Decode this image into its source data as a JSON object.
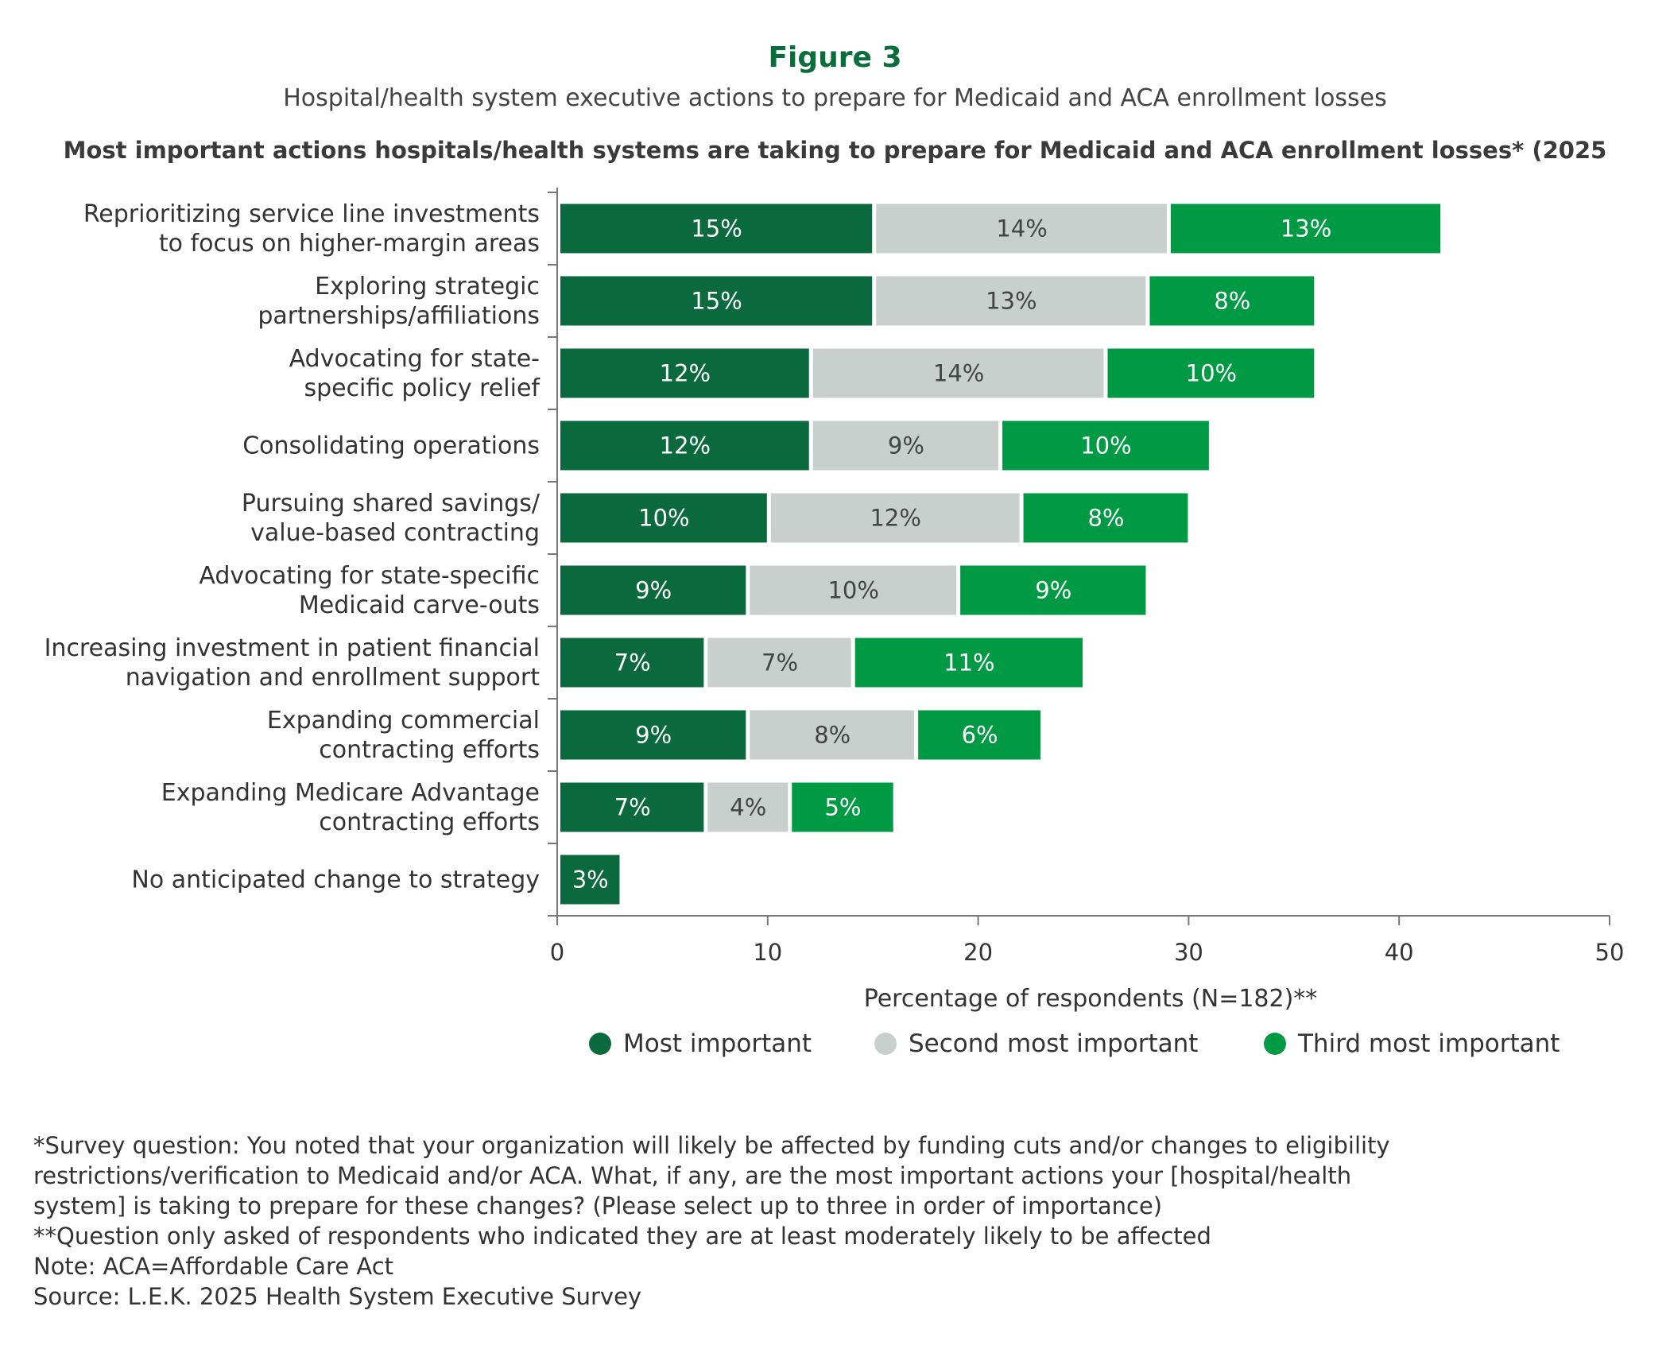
{
  "figure": {
    "label": "Figure 3",
    "subtitle": "Hospital/health system executive actions to prepare for Medicaid and ACA enrollment losses"
  },
  "chart_data": {
    "type": "bar",
    "orientation": "horizontal",
    "stacked": true,
    "title": "Most important actions hospitals/health systems are taking to prepare for Medicaid and ACA enrollment losses* (2025",
    "categories": [
      [
        "Reprioritizing service line investments",
        "to focus on higher-margin areas"
      ],
      [
        "Exploring strategic",
        "partnerships/affiliations"
      ],
      [
        "Advocating for state-",
        "specific policy relief"
      ],
      [
        "Consolidating operations"
      ],
      [
        "Pursuing shared savings/",
        "value-based contracting"
      ],
      [
        "Advocating for state-specific",
        "Medicaid carve-outs"
      ],
      [
        "Increasing investment in patient financial",
        "navigation and enrollment support"
      ],
      [
        "Expanding commercial",
        "contracting efforts"
      ],
      [
        "Expanding Medicare Advantage",
        "contracting efforts"
      ],
      [
        "No anticipated change to strategy"
      ]
    ],
    "series": [
      {
        "name": "Most important",
        "color": "#0b6a3d",
        "label_color": "#ffffff",
        "values": [
          15,
          15,
          12,
          12,
          10,
          9,
          7,
          9,
          7,
          3
        ]
      },
      {
        "name": "Second most important",
        "color": "#c8cfcd",
        "label_color": "#444444",
        "values": [
          14,
          13,
          14,
          9,
          12,
          10,
          7,
          8,
          4,
          0
        ]
      },
      {
        "name": "Third most important",
        "color": "#009a44",
        "label_color": "#ffffff",
        "values": [
          13,
          8,
          10,
          10,
          8,
          9,
          11,
          6,
          5,
          0
        ]
      }
    ],
    "value_suffix": "%",
    "xlabel": "Percentage of respondents (N=182)**",
    "xlim": [
      0,
      50
    ],
    "xticks": [
      0,
      10,
      20,
      30,
      40,
      50
    ],
    "grid": false,
    "legend_position": "bottom"
  },
  "notes": [
    "*Survey question: You noted that your organization will likely be affected by funding cuts and/or changes to eligibility",
    "restrictions/verification to Medicaid and/or ACA. What, if any, are the most important actions your [hospital/health",
    "system] is taking to prepare for these changes? (Please select up to three in order of importance)",
    "**Question only asked of respondents who indicated they are at least moderately likely to be affected",
    "Note: ACA=Affordable Care Act",
    "Source: L.E.K. 2025 Health System Executive Survey"
  ]
}
